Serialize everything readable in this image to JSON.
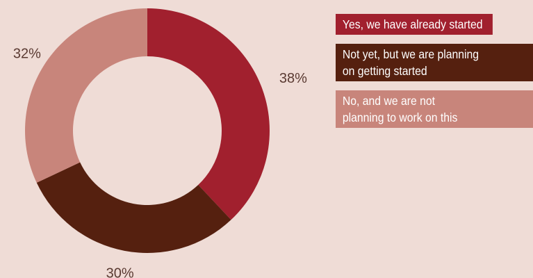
{
  "colors": {
    "background": "#efdcd6",
    "label_text": "#5a3a32"
  },
  "chart_data": {
    "type": "pie",
    "donut": true,
    "start_angle": "top",
    "direction": "clockwise",
    "legend_position": "right",
    "series": [
      {
        "name": "Yes, we have already started",
        "value": 38,
        "label": "38%",
        "color": "#a1202e"
      },
      {
        "name": "Not yet, but we are planning on getting started",
        "value": 30,
        "label": "30%",
        "color": "#55200f"
      },
      {
        "name": "No, and we are not planning to work on this",
        "value": 32,
        "label": "32%",
        "color": "#c8857b"
      }
    ]
  },
  "legend": {
    "items": [
      {
        "lines": [
          "Yes, we have already started"
        ]
      },
      {
        "lines": [
          "Not yet, but we are planning",
          "on getting started"
        ]
      },
      {
        "lines": [
          "No, and we are not",
          "planning to work on this"
        ]
      }
    ]
  }
}
